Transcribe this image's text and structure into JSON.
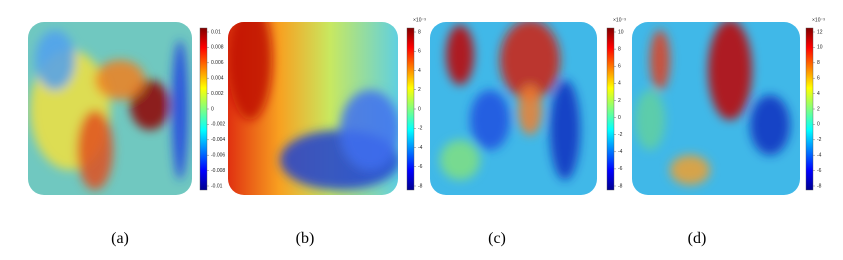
{
  "figure": {
    "panels": [
      {
        "caption": "(a)",
        "colorbar": {
          "ticks": [
            "0.01",
            "0.008",
            "0.006",
            "0.004",
            "0.002",
            "0",
            "-0.002",
            "-0.004",
            "-0.006",
            "-0.008",
            "-0.01"
          ]
        }
      },
      {
        "caption": "(b)",
        "colorbar": {
          "exponent": "×10⁻³",
          "ticks": [
            "8",
            "6",
            "4",
            "2",
            "0",
            "-2",
            "-4",
            "-6",
            "-8"
          ]
        }
      },
      {
        "caption": "(c)",
        "colorbar": {
          "exponent": "×10⁻³",
          "ticks": [
            "10",
            "8",
            "6",
            "4",
            "2",
            "0",
            "-2",
            "-4",
            "-6",
            "-8"
          ]
        }
      },
      {
        "caption": "(d)",
        "colorbar": {
          "exponent": "×10⁻³",
          "ticks": [
            "12",
            "10",
            "8",
            "6",
            "4",
            "2",
            "0",
            "-2",
            "-4",
            "-6",
            "-8"
          ]
        }
      }
    ]
  }
}
